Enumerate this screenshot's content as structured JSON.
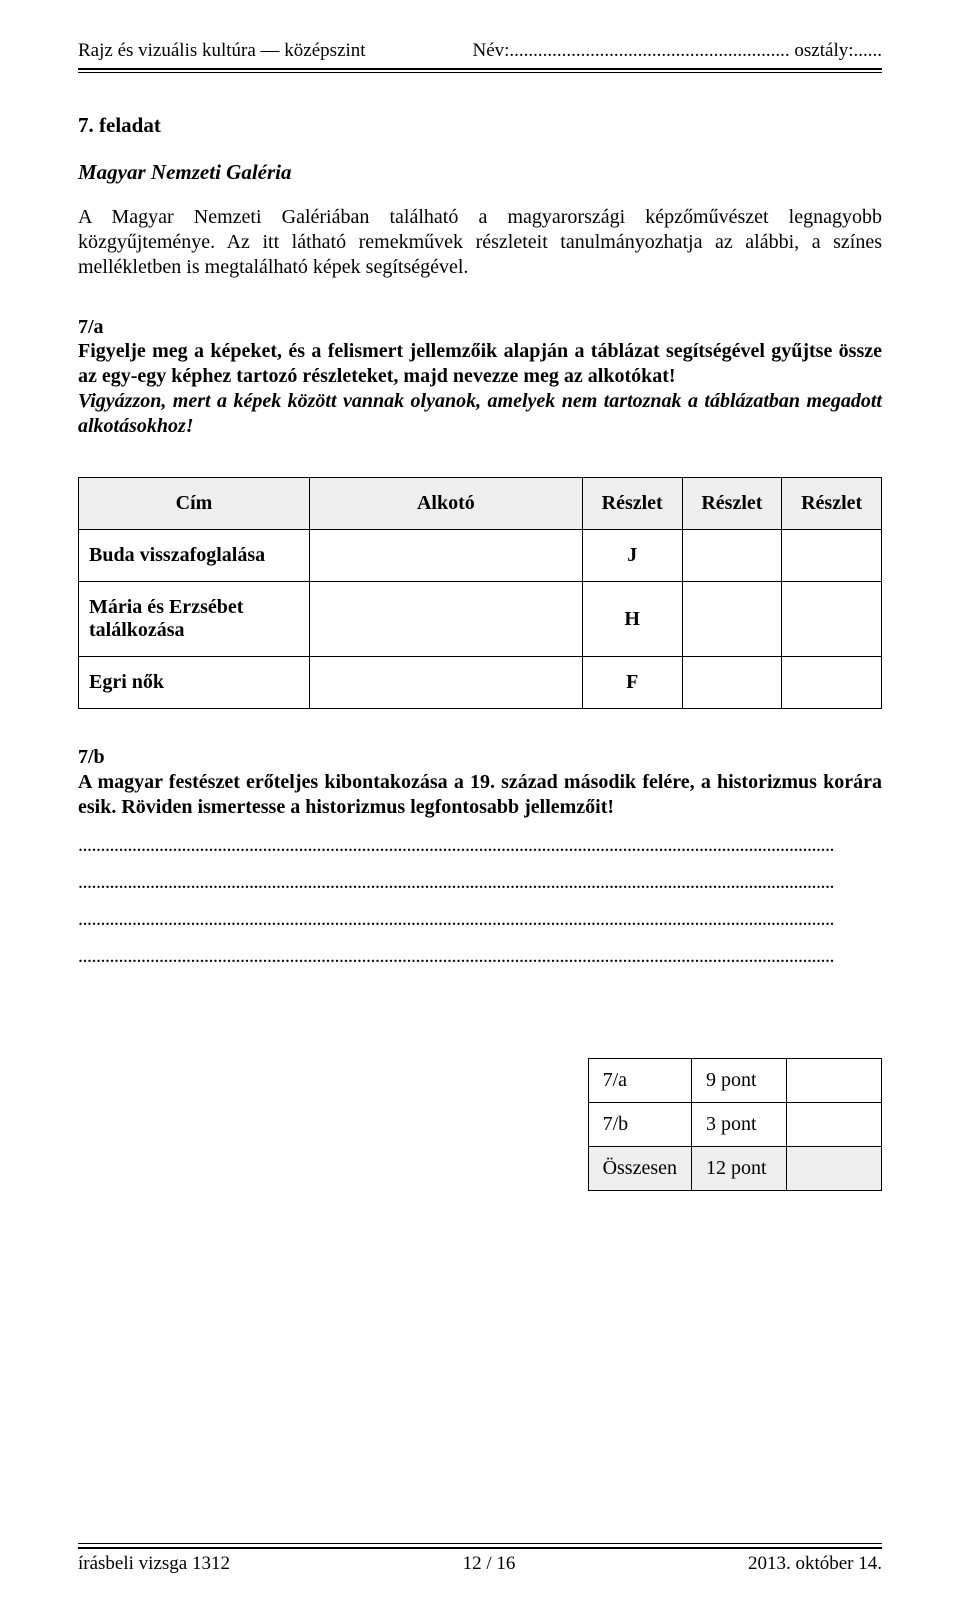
{
  "header": {
    "subject": "Rajz és vizuális kultúra — középszint",
    "name_label": "Név:........................................................... osztály:......"
  },
  "task": {
    "number": "7. feladat",
    "title": "Magyar Nemzeti Galéria",
    "intro": "A Magyar Nemzeti Galériában található a magyarországi képzőművészet legnagyobb közgyűjteménye. Az itt látható remekművek részleteit tanulmányozhatja az alábbi, a színes mellékletben is megtalálható képek segítségével."
  },
  "sub_a": {
    "label": "7/a",
    "instr1": "Figyelje meg a képeket, és a felismert jellemzőik alapján a táblázat segítségével gyűjtse össze az egy-egy képhez tartozó részleteket, majd nevezze meg az alkotókat!",
    "instr2": "Vigyázzon, mert a képek között vannak olyanok, amelyek nem tartoznak a táblázatban megadott alkotásokhoz!"
  },
  "table": {
    "headers": {
      "cim": "Cím",
      "alkoto": "Alkotó",
      "r1": "Részlet",
      "r2": "Részlet",
      "r3": "Részlet"
    },
    "rows": [
      {
        "cim": "Buda visszafoglalása",
        "r1": "J"
      },
      {
        "cim": "Mária és Erzsébet találkozása",
        "r1": "H"
      },
      {
        "cim": "Egri nők",
        "r1": "F"
      }
    ]
  },
  "sub_b": {
    "label": "7/b",
    "text": "A magyar festészet erőteljes kibontakozása a 19. század második felére, a historizmus korára esik. Röviden ismertesse a historizmus legfontosabb jellemzőit!"
  },
  "score": {
    "rows": [
      {
        "label": "7/a",
        "points": "9 pont"
      },
      {
        "label": "7/b",
        "points": "3 pont"
      }
    ],
    "total": {
      "label": "Összesen",
      "points": "12 pont"
    }
  },
  "footer": {
    "left": "írásbeli vizsga 1312",
    "center": "12 / 16",
    "right": "2013. október 14."
  }
}
